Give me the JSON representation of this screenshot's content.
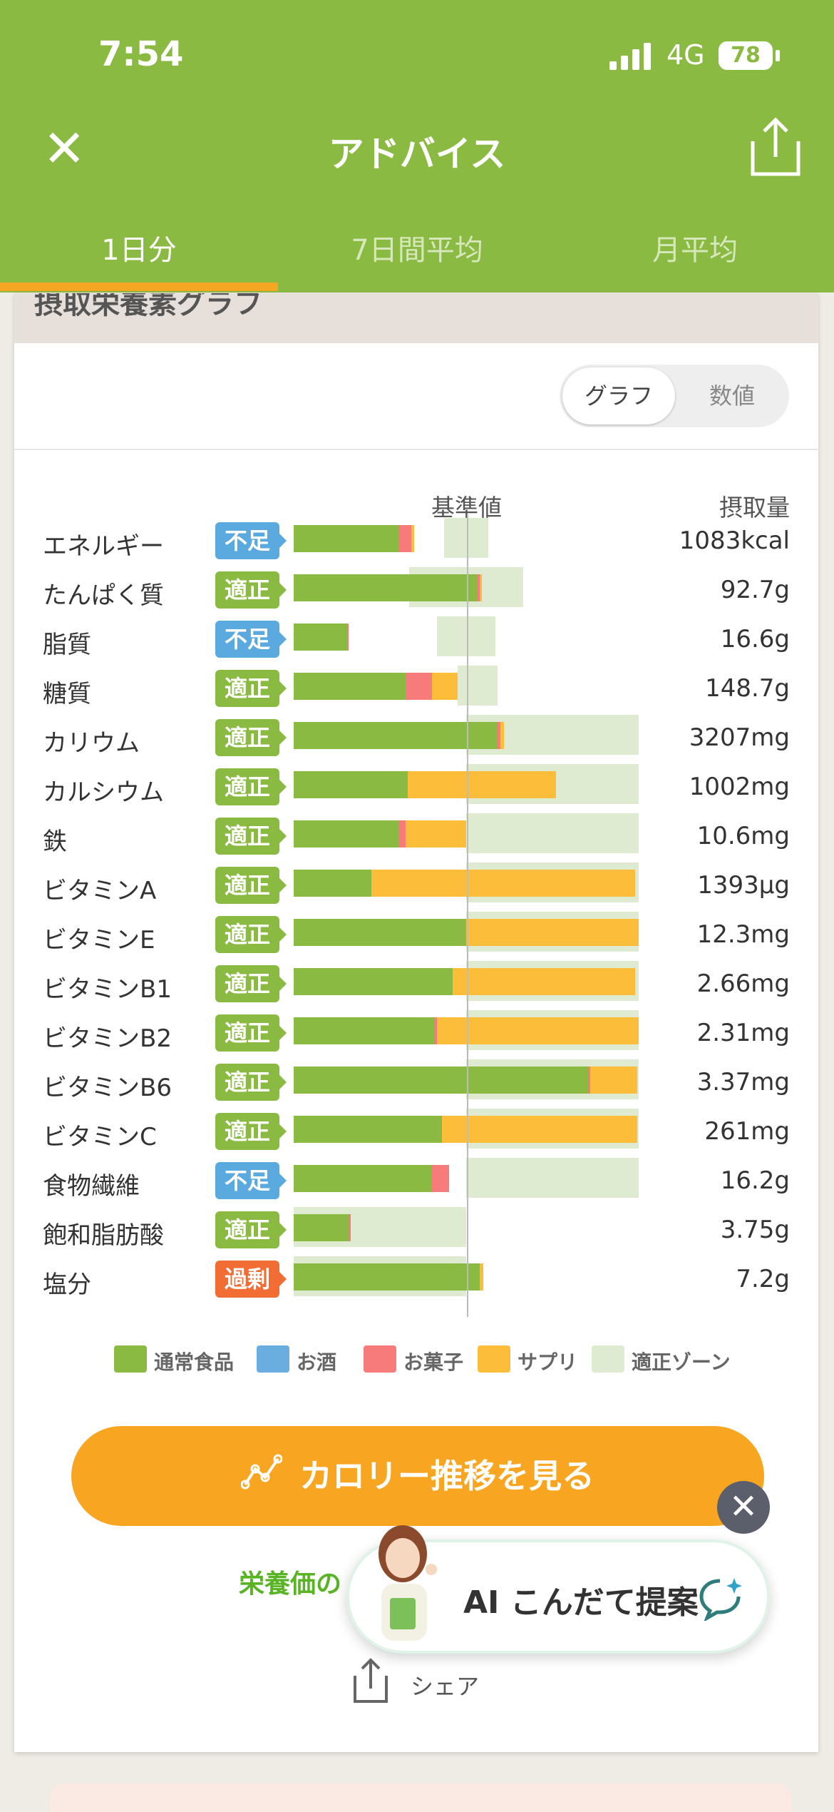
{
  "status": {
    "time": "7:54",
    "network": "4G",
    "battery": "78"
  },
  "header": {
    "title": "アドバイス"
  },
  "tabs": [
    {
      "label": "1日分"
    },
    {
      "label": "7日間平均"
    },
    {
      "label": "月平均"
    }
  ],
  "section": {
    "title": "摂取栄養素グラフ"
  },
  "toggle": {
    "graph": "グラフ",
    "number": "数値"
  },
  "columns": {
    "reference": "基準値",
    "intake": "摂取量"
  },
  "colors": {
    "food": "#8aba42",
    "alcohol": "#6aaee0",
    "snack": "#f77b7b",
    "supplement": "#fbbd3a",
    "zone": "#deebd0",
    "badge_low": "#5aaae0",
    "badge_ok": "#8aba42",
    "badge_over": "#f26d34"
  },
  "chart_data": {
    "type": "bar",
    "stacked": true,
    "series_names": [
      "通常食品",
      "お酒",
      "お菓子",
      "サプリ",
      "適正ゾーン"
    ],
    "nutrients": [
      {
        "name": "エネルギー",
        "status": "不足",
        "value": "1083kcal",
        "food": 0.61,
        "alcohol": 0,
        "snack": 0.07,
        "supplement": 0.02,
        "zone": [
          0.87,
          1.13
        ]
      },
      {
        "name": "たんぱく質",
        "status": "適正",
        "value": "92.7g",
        "food": 1.06,
        "alcohol": 0,
        "snack": 0.02,
        "supplement": 0.01,
        "zone": [
          0.67,
          1.33
        ]
      },
      {
        "name": "脂質",
        "status": "不足",
        "value": "16.6g",
        "food": 0.31,
        "alcohol": 0,
        "snack": 0.01,
        "supplement": 0,
        "zone": [
          0.83,
          1.17
        ]
      },
      {
        "name": "糖質",
        "status": "適正",
        "value": "148.7g",
        "food": 0.65,
        "alcohol": 0,
        "snack": 0.15,
        "supplement": 0.15,
        "zone": [
          0.95,
          1.18
        ]
      },
      {
        "name": "カリウム",
        "status": "適正",
        "value": "3207mg",
        "food": 1.18,
        "alcohol": 0,
        "snack": 0.02,
        "supplement": 0.02,
        "zone": [
          1.0,
          2.0
        ]
      },
      {
        "name": "カルシウム",
        "status": "適正",
        "value": "1002mg",
        "food": 0.66,
        "alcohol": 0,
        "snack": 0,
        "supplement": 0.86,
        "zone": [
          1.0,
          2.0
        ]
      },
      {
        "name": "鉄",
        "status": "適正",
        "value": "10.6mg",
        "food": 0.61,
        "alcohol": 0,
        "snack": 0.04,
        "supplement": 0.35,
        "zone": [
          1.0,
          2.0
        ]
      },
      {
        "name": "ビタミンA",
        "status": "適正",
        "value": "1393μg",
        "food": 0.45,
        "alcohol": 0,
        "snack": 0,
        "supplement": 1.53,
        "zone": [
          1.0,
          2.0
        ]
      },
      {
        "name": "ビタミンE",
        "status": "適正",
        "value": "12.3mg",
        "food": 1.0,
        "alcohol": 0,
        "snack": 0,
        "supplement": 1.0,
        "zone": [
          1.0,
          2.0
        ]
      },
      {
        "name": "ビタミンB1",
        "status": "適正",
        "value": "2.66mg",
        "food": 0.92,
        "alcohol": 0,
        "snack": 0,
        "supplement": 1.06,
        "zone": [
          1.0,
          2.0
        ]
      },
      {
        "name": "ビタミンB2",
        "status": "適正",
        "value": "2.31mg",
        "food": 0.82,
        "alcohol": 0,
        "snack": 0.01,
        "supplement": 1.17,
        "zone": [
          1.0,
          2.0
        ]
      },
      {
        "name": "ビタミンB6",
        "status": "適正",
        "value": "3.37mg",
        "food": 1.71,
        "alcohol": 0,
        "snack": 0.01,
        "supplement": 0.27,
        "zone": [
          1.0,
          2.0
        ]
      },
      {
        "name": "ビタミンC",
        "status": "適正",
        "value": "261mg",
        "food": 0.86,
        "alcohol": 0,
        "snack": 0,
        "supplement": 1.13,
        "zone": [
          1.0,
          2.0
        ]
      },
      {
        "name": "食物繊維",
        "status": "不足",
        "value": "16.2g",
        "food": 0.8,
        "alcohol": 0,
        "snack": 0.1,
        "supplement": 0,
        "zone": [
          1.0,
          2.0
        ]
      },
      {
        "name": "飽和脂肪酸",
        "status": "適正",
        "value": "3.75g",
        "food": 0.32,
        "alcohol": 0,
        "snack": 0.01,
        "supplement": 0,
        "zone": [
          0.0,
          1.0
        ]
      },
      {
        "name": "塩分",
        "status": "過剰",
        "value": "7.2g",
        "food": 1.08,
        "alcohol": 0,
        "snack": 0,
        "supplement": 0.02,
        "zone": [
          0.0,
          1.0
        ]
      }
    ]
  },
  "legend": [
    {
      "label": "通常食品",
      "color": "#8aba42"
    },
    {
      "label": "お酒",
      "color": "#6aaee0"
    },
    {
      "label": "お菓子",
      "color": "#f77b7b"
    },
    {
      "label": "サプリ",
      "color": "#fbbd3a"
    },
    {
      "label": "適正ゾーン",
      "color": "#deebd0"
    }
  ],
  "actions": {
    "calorie_button": "カロリー推移を見る",
    "nutrition_link": "栄養価の",
    "share": "シェア"
  },
  "ai": {
    "label": "AI こんだて提案"
  }
}
